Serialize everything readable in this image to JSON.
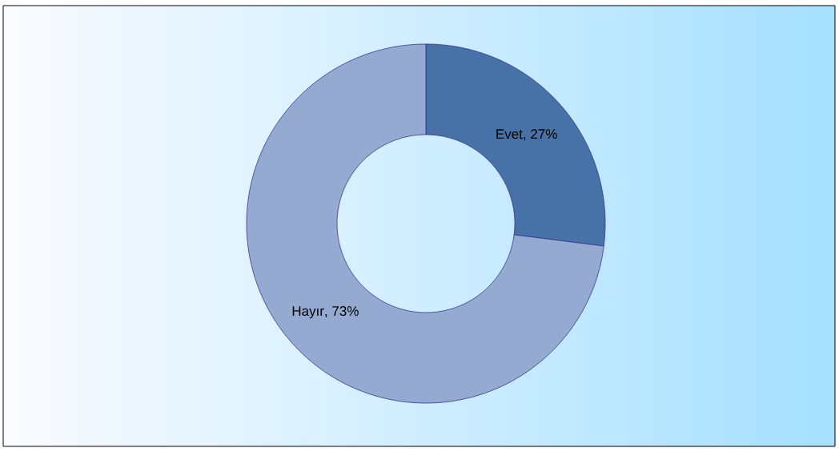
{
  "chart_data": {
    "type": "donut",
    "categories": [
      "Evet",
      "Hayır"
    ],
    "values": [
      27,
      73
    ],
    "colors": [
      "#4672a8",
      "#95aad0"
    ],
    "value_labels": [
      ", 27%",
      ", 73%"
    ]
  }
}
